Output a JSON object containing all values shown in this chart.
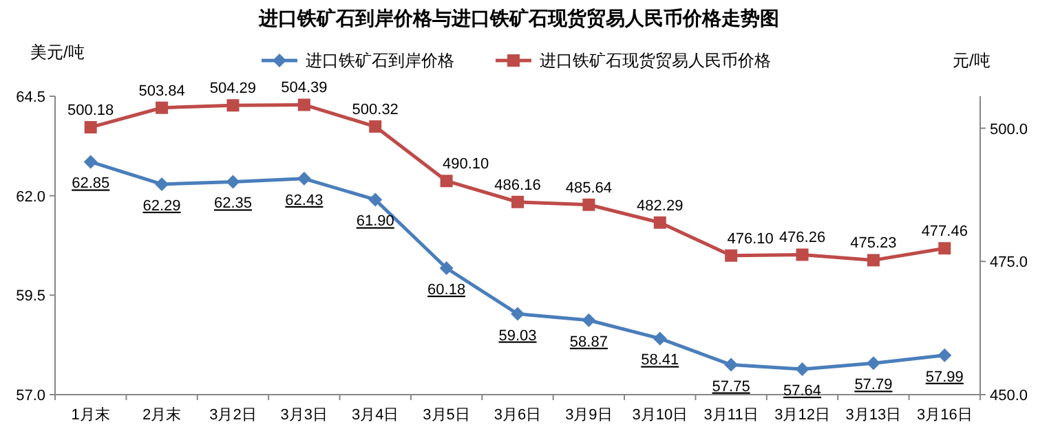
{
  "chart_data": {
    "type": "line",
    "title": "进口铁矿石到岸价格与进口铁矿石现货贸易人民币价格走势图",
    "ylabel": "美元/吨",
    "y2label": "元/吨",
    "categories": [
      "1月末",
      "2月末",
      "3月2日",
      "3月3日",
      "3月4日",
      "3月5日",
      "3月6日",
      "3月9日",
      "3月10日",
      "3月11日",
      "3月12日",
      "3月13日",
      "3月16日"
    ],
    "series": [
      {
        "name": "进口铁矿石到岸价格",
        "color": "#4a7ebb",
        "marker": "diamond",
        "values": [
          62.85,
          62.29,
          62.35,
          62.43,
          61.9,
          60.18,
          59.03,
          58.87,
          58.41,
          57.75,
          57.64,
          57.79,
          57.99
        ],
        "value_labels": [
          "62.85",
          "62.29",
          "62.35",
          "62.43",
          "61.90",
          "60.18",
          "59.03",
          "58.87",
          "58.41",
          "57.75",
          "57.64",
          "57.79",
          "57.99"
        ]
      },
      {
        "name": "进口铁矿石现货贸易人民币价格",
        "color": "#be4b48",
        "marker": "square",
        "axis": "y2",
        "values": [
          500.18,
          503.84,
          504.29,
          504.39,
          500.32,
          490.1,
          486.16,
          485.64,
          482.29,
          476.1,
          476.26,
          475.23,
          477.46
        ],
        "value_labels": [
          "500.18",
          "503.84",
          "504.29",
          "504.39",
          "500.32",
          "490.10",
          "486.16",
          "485.64",
          "482.29",
          "476.10",
          "476.26",
          "475.23",
          "477.46"
        ]
      }
    ],
    "ylim": [
      57.0,
      64.5
    ],
    "yticks": [
      {
        "value": 57.0,
        "label": "57.0"
      },
      {
        "value": 59.5,
        "label": "59.5"
      },
      {
        "value": 62.0,
        "label": "62.0"
      },
      {
        "value": 64.5,
        "label": "64.5"
      }
    ],
    "y2lim": [
      450,
      506
    ],
    "y2ticks": [
      {
        "value": 450,
        "label": "450.0"
      },
      {
        "value": 475,
        "label": "475.0"
      },
      {
        "value": 500,
        "label": "500.0"
      }
    ],
    "legend": "top",
    "grid": false,
    "line_style": "solid"
  }
}
